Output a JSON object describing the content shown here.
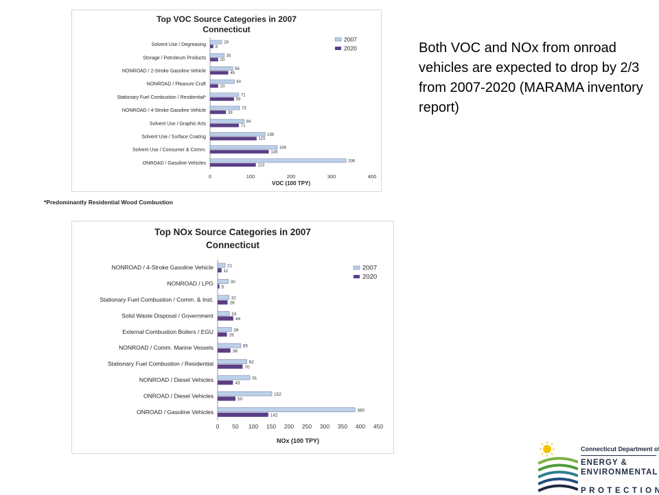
{
  "colors": {
    "series_2007": "#bdd0ea",
    "series_2020": "#5b3f86",
    "bar_stroke": "#6f86a8",
    "axis": "#9a9a9a",
    "logo_navy": "#1f2a44",
    "logo_green": "#7cb342",
    "logo_sun": "#f2c200"
  },
  "slide_text": "Both VOC and NOx from onroad vehicles are expected to drop by 2/3 from 2007-2020 (MARAMA inventory report)",
  "footnote": "*Predominantly Residential Wood Combustion",
  "logo": {
    "dept": "Connecticut Department of",
    "line1": "ENERGY &",
    "line2": "ENVIRONMENTAL",
    "line3": "PROTECTION"
  },
  "chart_data": [
    {
      "id": "voc",
      "type": "bar",
      "orientation": "horizontal",
      "title": "Top VOC Source Categories in 2007",
      "subtitle": "Connecticut",
      "xlabel": "VOC (100 TPY)",
      "ylabel": "",
      "xlim": [
        0,
        400
      ],
      "xticks": [
        0,
        100,
        200,
        300,
        400
      ],
      "legend_position": "top-right",
      "grid": false,
      "categories": [
        "Solvent Use / Degreasing",
        "Storage / Petroleum Products",
        "NONROAD / 2-Stroke Gasoline Vehicle",
        "NONROAD / Pleasure Craft",
        "Stationary Fuel Combustion / Residential*",
        "NONROAD / 4-Stroke Gasoline Vehicle",
        "Solvent Use / Graphic Arts",
        "Solvent Use / Surface Coating",
        "Solvent Use / Consumer & Comm.",
        "ONROAD / Gasoline Vehicles"
      ],
      "series": [
        {
          "name": "2007",
          "values": [
            29,
            35,
            56,
            60,
            71,
            73,
            84,
            136,
            166,
            336
          ],
          "labels": [
            "29",
            "35",
            "56",
            "60",
            "71",
            "73",
            "84",
            "136",
            "166",
            "336"
          ]
        },
        {
          "name": "2020",
          "values": [
            8,
            20,
            45,
            20,
            59,
            39,
            71,
            115,
            145,
            113
          ],
          "labels": [
            "8",
            "20",
            "45",
            "20",
            "59",
            "39",
            "71",
            "115",
            "145",
            "113"
          ]
        }
      ]
    },
    {
      "id": "nox",
      "type": "bar",
      "orientation": "horizontal",
      "title": "Top NOx Source Categories in 2007",
      "subtitle": "Connecticut",
      "xlabel": "NOx (100 TPY)",
      "ylabel": "",
      "xlim": [
        0,
        450
      ],
      "xticks": [
        0,
        50,
        100,
        150,
        200,
        250,
        300,
        350,
        400,
        450
      ],
      "legend_position": "top-right",
      "grid": false,
      "categories": [
        "NONROAD / 4-Stroke Gasoline Vehicle",
        "NONROAD / LPG",
        "Stationary Fuel Combustion / Comm. & Inst.",
        "Solid Waste Disposal / Government",
        "External Combustion Boilers / EGU",
        "NONROAD / Comm. Marine Vessels",
        "Stationary Fuel Combustion / Residential",
        "NONROAD / Diesel Vehicles",
        "ONROAD / Diesel Vehicles",
        "ONROAD / Gasoline Vehicles"
      ],
      "series": [
        {
          "name": "2007",
          "values": [
            21,
            30,
            32,
            33,
            39,
            65,
            82,
            91,
            152,
            385
          ],
          "labels": [
            "21",
            "30",
            "32",
            "33",
            "39",
            "65",
            "82",
            "91",
            "152",
            "385"
          ]
        },
        {
          "name": "2020",
          "values": [
            11,
            5,
            28,
            44,
            26,
            36,
            70,
            43,
            50,
            142
          ],
          "labels": [
            "11",
            "5",
            "28",
            "44",
            "26",
            "36",
            "70",
            "43",
            "50",
            "142"
          ]
        }
      ]
    }
  ]
}
